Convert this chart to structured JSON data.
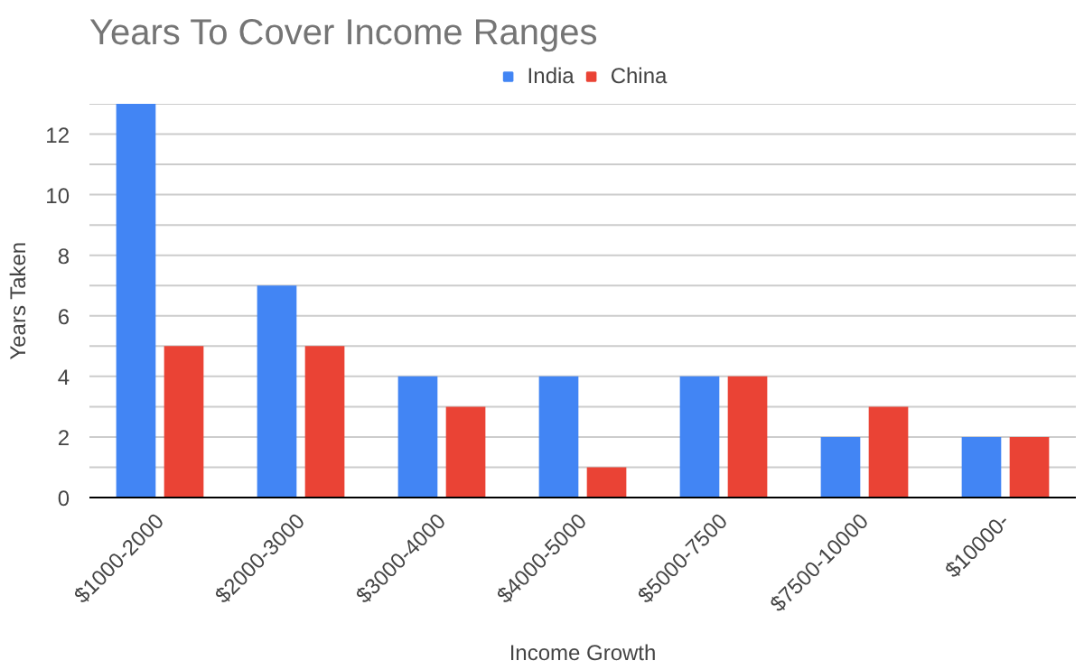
{
  "chart_data": {
    "type": "bar",
    "title": "Years To Cover Income Ranges",
    "xlabel": "Income Growth",
    "ylabel": "Years Taken",
    "categories": [
      "$1000-2000",
      "$2000-3000",
      "$3000-4000",
      "$4000-5000",
      "$5000-7500",
      "$7500-10000",
      "$10000-"
    ],
    "series": [
      {
        "name": "India",
        "color": "#4285f4",
        "values": [
          13,
          7,
          4,
          4,
          4,
          2,
          2
        ]
      },
      {
        "name": "China",
        "color": "#ea4335",
        "values": [
          5,
          5,
          3,
          1,
          4,
          3,
          2
        ]
      }
    ],
    "ylim": [
      0,
      13
    ],
    "yticks": [
      0,
      {
        "value": 1,
        "label": null
      },
      2,
      {
        "value": 3,
        "label": null
      },
      4,
      {
        "value": 5,
        "label": null
      },
      6,
      {
        "value": 7,
        "label": null
      },
      8,
      {
        "value": 9,
        "label": null
      },
      10,
      {
        "value": 11,
        "label": null
      },
      12,
      {
        "value": 13,
        "label": null
      }
    ],
    "grid": "y",
    "legend": "top"
  }
}
